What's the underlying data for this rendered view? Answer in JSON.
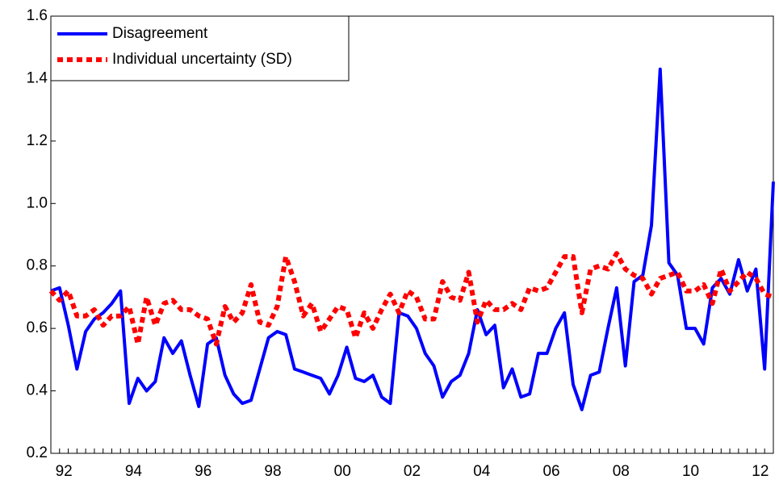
{
  "chart_data": {
    "type": "line",
    "categories": [
      "92",
      null,
      null,
      null,
      null,
      null,
      null,
      null,
      "94",
      null,
      null,
      null,
      null,
      null,
      null,
      null,
      "96",
      null,
      null,
      null,
      null,
      null,
      null,
      null,
      "98",
      null,
      null,
      null,
      null,
      null,
      null,
      null,
      "00",
      null,
      null,
      null,
      null,
      null,
      null,
      null,
      "02",
      null,
      null,
      null,
      null,
      null,
      null,
      null,
      "04",
      null,
      null,
      null,
      null,
      null,
      null,
      null,
      "06",
      null,
      null,
      null,
      null,
      null,
      null,
      null,
      "08",
      null,
      null,
      null,
      null,
      null,
      null,
      null,
      "10",
      null,
      null,
      null,
      null,
      null,
      null,
      null,
      "12",
      null,
      null,
      null
    ],
    "series": [
      {
        "name": "Disagreement",
        "color": "#0000ff",
        "values": [
          0.72,
          0.73,
          0.61,
          0.47,
          0.59,
          0.63,
          0.65,
          0.68,
          0.72,
          0.36,
          0.44,
          0.4,
          0.43,
          0.57,
          0.52,
          0.56,
          0.45,
          0.35,
          0.55,
          0.57,
          0.45,
          0.39,
          0.36,
          0.37,
          0.47,
          0.57,
          0.59,
          0.58,
          0.47,
          0.46,
          0.45,
          0.44,
          0.39,
          0.45,
          0.54,
          0.44,
          0.43,
          0.45,
          0.38,
          0.36,
          0.65,
          0.64,
          0.6,
          0.52,
          0.48,
          0.38,
          0.43,
          0.45,
          0.52,
          0.66,
          0.58,
          0.61,
          0.41,
          0.47,
          0.38,
          0.39,
          0.52,
          0.52,
          0.6,
          0.65,
          0.42,
          0.34,
          0.45,
          0.46,
          0.6,
          0.73,
          0.48,
          0.75,
          0.77,
          0.93,
          1.43,
          0.81,
          0.77,
          0.6,
          0.6,
          0.55,
          0.73,
          0.76,
          0.71,
          0.82,
          0.72,
          0.79,
          0.47,
          1.07
        ]
      },
      {
        "name": "Individual uncertainty (SD)",
        "color": "#ff0000",
        "values": [
          0.72,
          0.69,
          0.72,
          0.64,
          0.64,
          0.66,
          0.61,
          0.64,
          0.64,
          0.67,
          0.55,
          0.7,
          0.61,
          0.68,
          0.69,
          0.66,
          0.66,
          0.64,
          0.63,
          0.55,
          0.67,
          0.62,
          0.65,
          0.74,
          0.62,
          0.61,
          0.67,
          0.83,
          0.75,
          0.64,
          0.68,
          0.59,
          0.63,
          0.67,
          0.66,
          0.57,
          0.65,
          0.6,
          0.66,
          0.71,
          0.65,
          0.72,
          0.7,
          0.63,
          0.63,
          0.75,
          0.7,
          0.69,
          0.78,
          0.62,
          0.69,
          0.66,
          0.66,
          0.68,
          0.66,
          0.73,
          0.72,
          0.73,
          0.78,
          0.83,
          0.83,
          0.65,
          0.79,
          0.8,
          0.79,
          0.84,
          0.79,
          0.77,
          0.76,
          0.71,
          0.76,
          0.77,
          0.78,
          0.72,
          0.72,
          0.74,
          0.68,
          0.79,
          0.72,
          0.75,
          0.78,
          0.76,
          0.71,
          0.7
        ]
      }
    ],
    "ylim": [
      0.2,
      1.6
    ],
    "yticks": [
      0.2,
      0.4,
      0.6,
      0.8,
      {
        "value": 1,
        "label": "1.0"
      },
      1.2,
      1.4,
      1.6
    ]
  }
}
